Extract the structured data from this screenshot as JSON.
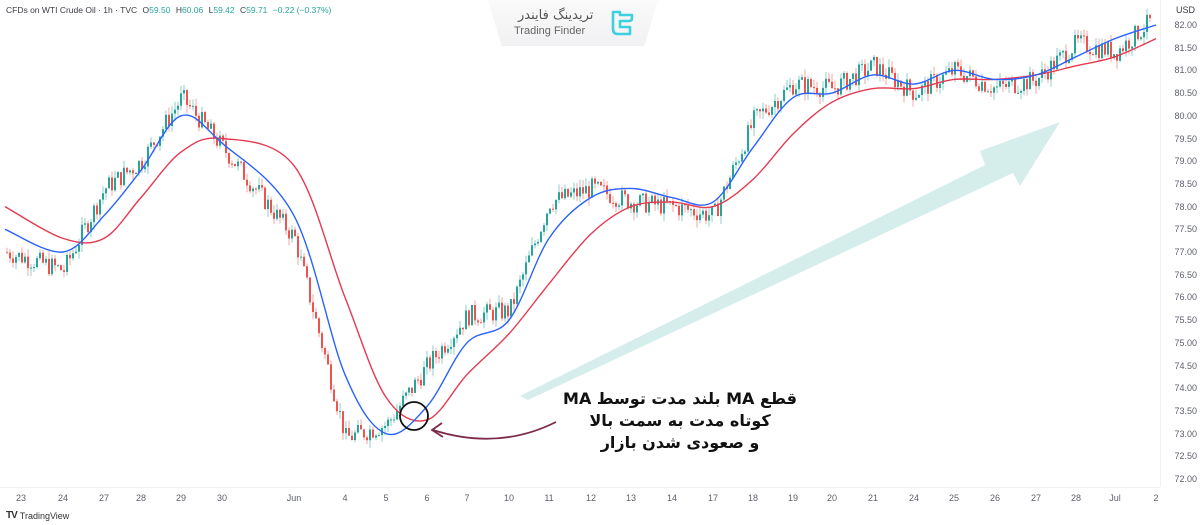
{
  "header": {
    "symbol": "CFDs on WTI Crude Oil · 1h · TVC",
    "open_label": "O",
    "open": "59.50",
    "high_label": "H",
    "high": "60.06",
    "low_label": "L",
    "low": "59.42",
    "close_label": "C",
    "close": "59.71",
    "change": "−0.22 (−0.37%)"
  },
  "watermark": {
    "persian": "تریدینگ فایندر",
    "english": "Trading Finder",
    "logo_icon": "trading-finder-logo-icon"
  },
  "price_axis": {
    "currency": "USD",
    "labels": [
      "82.00",
      "81.50",
      "81.00",
      "80.50",
      "80.00",
      "79.50",
      "79.00",
      "78.50",
      "78.00",
      "77.50",
      "77.00",
      "76.50",
      "76.00",
      "75.50",
      "75.00",
      "74.50",
      "74.00",
      "73.50",
      "73.00",
      "72.50",
      "72.00"
    ]
  },
  "time_axis": {
    "labels": [
      "23",
      "24",
      "27",
      "28",
      "29",
      "30",
      "Jun",
      "4",
      "5",
      "6",
      "7",
      "10",
      "11",
      "12",
      "13",
      "14",
      "17",
      "18",
      "19",
      "20",
      "21",
      "24",
      "25",
      "26",
      "27",
      "28",
      "Jul",
      "2"
    ]
  },
  "annotation": {
    "line1": "قطع MA بلند مدت توسط MA",
    "line2": "کوتاه مدت به سمت بالا",
    "line3": "و صعودی شدن بازار"
  },
  "footer": {
    "brand": "TradingView"
  },
  "colors": {
    "up_candle": "#26a69a",
    "down_candle": "#ef5350",
    "ma_short": "#2962ff",
    "ma_long": "#e53950",
    "trend_arrow": "#b2dfdb",
    "callout_arrow": "#7b2a4a"
  },
  "chart_data": {
    "type": "line",
    "title": "CFDs on WTI Crude Oil · 1h · TVC",
    "xlabel": "",
    "ylabel": "USD",
    "ylim": [
      72.0,
      82.4
    ],
    "grid": false,
    "legend": "none",
    "x": [
      "23",
      "24",
      "27",
      "28",
      "29",
      "30",
      "Jun",
      "4",
      "5",
      "6",
      "7",
      "10",
      "11",
      "12",
      "13",
      "14",
      "17",
      "18",
      "19",
      "20",
      "21",
      "24",
      "25",
      "26",
      "27",
      "28",
      "Jul",
      "2"
    ],
    "series": [
      {
        "name": "Price (approx close)",
        "values": [
          77.0,
          76.6,
          78.4,
          79.0,
          80.4,
          79.3,
          77.3,
          72.9,
          73.2,
          74.5,
          75.6,
          75.7,
          78.1,
          78.4,
          78.1,
          78.0,
          77.8,
          79.9,
          80.7,
          80.6,
          81.1,
          80.5,
          81.0,
          80.6,
          80.8,
          81.6,
          81.4,
          82.2
        ]
      },
      {
        "name": "Short MA (blue)",
        "values": [
          77.5,
          77.0,
          77.8,
          78.8,
          80.0,
          79.4,
          77.8,
          74.3,
          73.0,
          73.6,
          75.0,
          75.5,
          77.3,
          78.2,
          78.4,
          78.2,
          78.1,
          79.3,
          80.4,
          80.5,
          80.9,
          80.7,
          81.0,
          80.8,
          80.9,
          81.3,
          81.7,
          82.0
        ]
      },
      {
        "name": "Long MA (red)",
        "values": [
          78.0,
          77.3,
          77.3,
          78.2,
          79.2,
          79.5,
          78.9,
          76.0,
          73.8,
          73.3,
          74.3,
          75.2,
          76.3,
          77.4,
          78.0,
          78.1,
          78.0,
          78.6,
          79.6,
          80.3,
          80.6,
          80.6,
          80.8,
          80.8,
          80.9,
          81.1,
          81.3,
          81.7
        ]
      }
    ],
    "annotations": [
      {
        "type": "circle",
        "at": "5-6 Jun",
        "price": 73.5,
        "text": "MA crossover"
      },
      {
        "type": "arrow",
        "from": [
          "6 Jun",
          74.3
        ],
        "to": [
          "27 Jun",
          80.0
        ],
        "text": "uptrend"
      },
      {
        "type": "text",
        "text": "قطع MA بلند مدت توسط MA کوتاه مدت به سمت بالا و صعودی شدن بازار"
      }
    ]
  }
}
